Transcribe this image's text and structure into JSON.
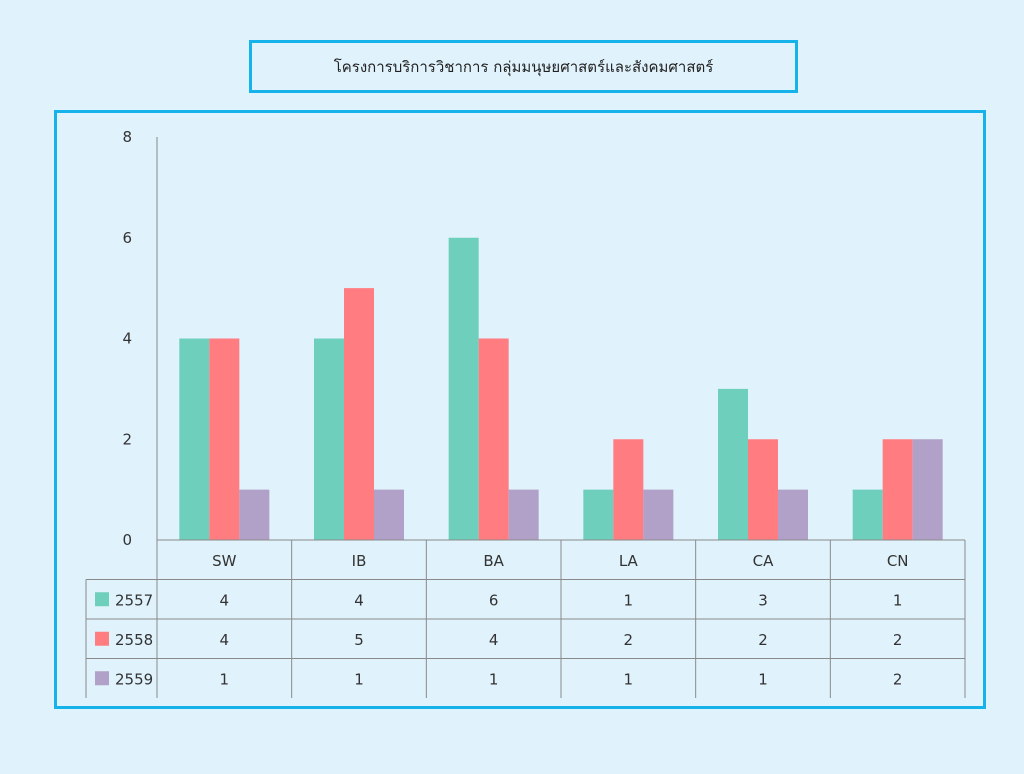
{
  "chart_data": {
    "type": "bar",
    "title": "โครงการบริการวิชาการ กลุ่มมนุษยศาสตร์และสังคมศาสตร์",
    "categories": [
      "SW",
      "IB",
      "BA",
      "LA",
      "CA",
      "CN"
    ],
    "series": [
      {
        "name": "2557",
        "color": "#6ecfbd",
        "values": [
          4,
          4,
          6,
          1,
          3,
          1
        ]
      },
      {
        "name": "2558",
        "color": "#ff7c80",
        "values": [
          4,
          5,
          4,
          2,
          2,
          2
        ]
      },
      {
        "name": "2559",
        "color": "#b1a0c7",
        "values": [
          1,
          1,
          1,
          1,
          1,
          2
        ]
      }
    ],
    "ylim": [
      0,
      8
    ],
    "yticks": [
      "0",
      "2",
      "4",
      "6",
      "8"
    ],
    "xlabel": "",
    "ylabel": "",
    "data_table": true
  }
}
